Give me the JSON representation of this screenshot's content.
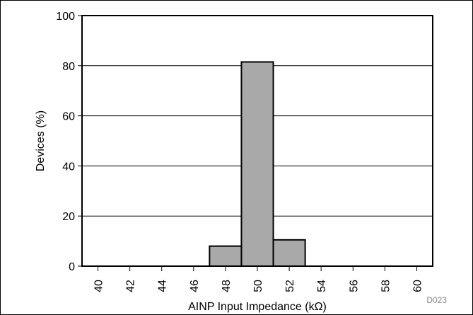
{
  "chart_data": {
    "type": "bar",
    "title": "",
    "xlabel": "AINP Input Impedance (kΩ)",
    "ylabel": "Devices (%)",
    "ylim": [
      0,
      100
    ],
    "xlim": [
      39,
      61
    ],
    "yticks": [
      0,
      20,
      40,
      60,
      80,
      100
    ],
    "xticks": [
      40,
      42,
      44,
      46,
      48,
      50,
      52,
      54,
      56,
      58,
      60
    ],
    "bins": [
      {
        "x0": 47,
        "x1": 49,
        "value": 8
      },
      {
        "x0": 49,
        "x1": 51,
        "value": 81.5
      },
      {
        "x0": 51,
        "x1": 53,
        "value": 10.5
      }
    ],
    "bar_color": "#a9a9a9",
    "grid": "horizontal",
    "figure_code": "D023"
  }
}
